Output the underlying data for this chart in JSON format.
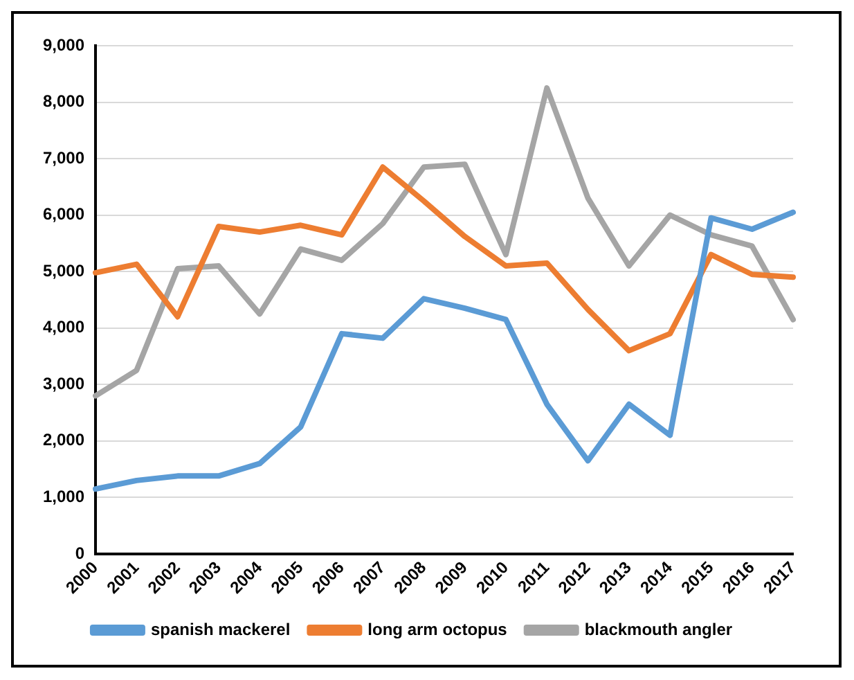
{
  "chart_data": {
    "type": "line",
    "categories": [
      "2000",
      "2001",
      "2002",
      "2003",
      "2004",
      "2005",
      "2006",
      "2007",
      "2008",
      "2009",
      "2010",
      "2011",
      "2012",
      "2013",
      "2014",
      "2015",
      "2016",
      "2017"
    ],
    "series": [
      {
        "name": "spanish mackerel",
        "color": "#5b9bd5",
        "values": [
          1150,
          1300,
          1380,
          1380,
          1600,
          2250,
          3900,
          3820,
          4520,
          4350,
          4150,
          2650,
          1650,
          2650,
          2100,
          5950,
          5750,
          6050
        ]
      },
      {
        "name": "long arm octopus",
        "color": "#ed7d31",
        "values": [
          4980,
          5130,
          4200,
          5800,
          5700,
          5820,
          5650,
          6850,
          6250,
          5620,
          5100,
          5150,
          4330,
          3600,
          3900,
          5300,
          4950,
          4900
        ]
      },
      {
        "name": "blackmouth angler",
        "color": "#a5a5a5",
        "values": [
          2800,
          3250,
          5050,
          5100,
          4250,
          5400,
          5200,
          5850,
          6850,
          6900,
          5300,
          8250,
          6300,
          5100,
          6000,
          5650,
          5450,
          4150
        ]
      }
    ],
    "ylim": [
      0,
      9000
    ],
    "yticks": [
      {
        "value": 0,
        "label": "0"
      },
      {
        "value": 1000,
        "label": "1,000"
      },
      {
        "value": 2000,
        "label": "2,000"
      },
      {
        "value": 3000,
        "label": "3,000"
      },
      {
        "value": 4000,
        "label": "4,000"
      },
      {
        "value": 5000,
        "label": "5,000"
      },
      {
        "value": 6000,
        "label": "6,000"
      },
      {
        "value": 7000,
        "label": "7,000"
      },
      {
        "value": 8000,
        "label": "8,000"
      },
      {
        "value": 9000,
        "label": "9,000"
      }
    ],
    "grid": "y",
    "legend": "bottom",
    "marker": "none",
    "line_style": "solid"
  }
}
